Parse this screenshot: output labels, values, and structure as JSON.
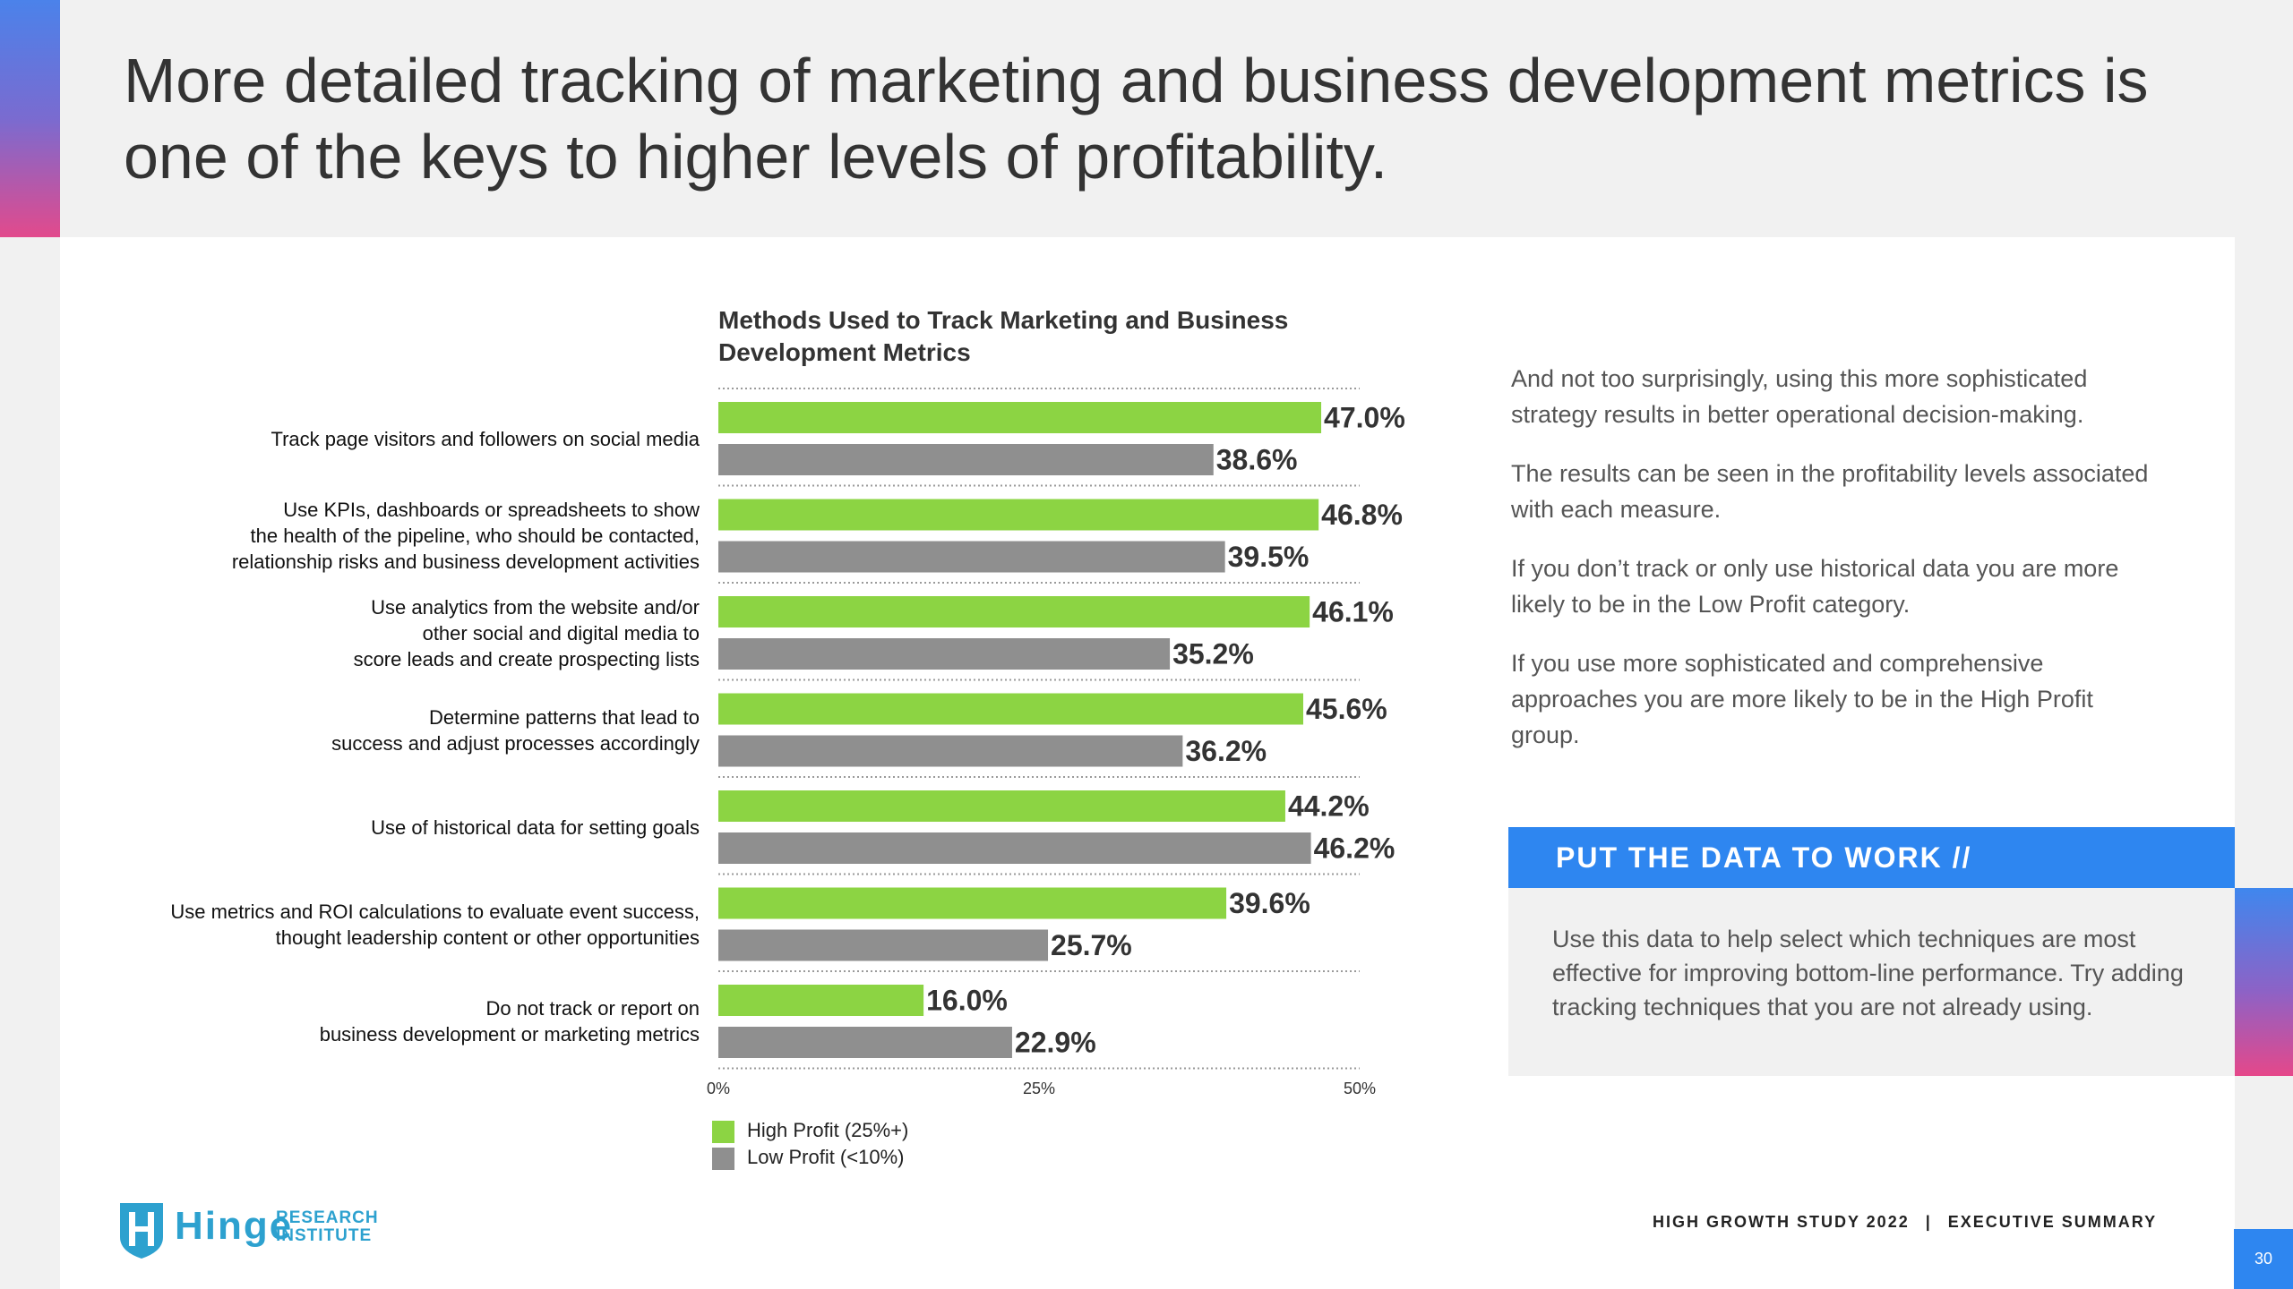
{
  "page": {
    "title": "More detailed tracking of marketing and business development metrics is one of the keys to higher levels of profitability.",
    "page_number": "30"
  },
  "colors": {
    "high_profit": "#8cd443",
    "low_profit": "#8f8f8f",
    "accent_blue": "#2e86f0",
    "accent_pink": "#e24a8c"
  },
  "chart_data": {
    "type": "bar",
    "orientation": "horizontal",
    "title": "Methods Used to Track Marketing and Business Development Metrics",
    "categories": [
      "Track page visitors and followers on social media",
      "Use KPIs, dashboards or spreadsheets to show the health of the pipeline, who should be contacted, relationship risks and business development activities",
      "Use analytics from the website and/or other social and digital media to score leads and create prospecting lists",
      "Determine patterns that lead to success and adjust processes accordingly",
      "Use of historical data for setting goals",
      "Use metrics and ROI calculations to evaluate event success, thought leadership content or other opportunities",
      "Do not track or report on business development or marketing metrics"
    ],
    "category_lines": [
      [
        "Track page visitors and followers on social media"
      ],
      [
        "Use KPIs, dashboards or spreadsheets to show",
        "the health of the pipeline, who should be contacted,",
        "relationship risks and business development activities"
      ],
      [
        "Use analytics from the website and/or",
        "other social and digital media to",
        "score leads and create prospecting lists"
      ],
      [
        "Determine patterns that lead to",
        "success and adjust processes accordingly"
      ],
      [
        "Use of historical data for setting goals"
      ],
      [
        "Use metrics and ROI calculations to evaluate event success,",
        "thought leadership content or other opportunities"
      ],
      [
        "Do not track or report on",
        "business development or marketing metrics"
      ]
    ],
    "series": [
      {
        "name": "High Profit (25%+)",
        "values": [
          47.0,
          46.8,
          46.1,
          45.6,
          44.2,
          39.6,
          16.0
        ]
      },
      {
        "name": "Low Profit (<10%)",
        "values": [
          38.6,
          39.5,
          35.2,
          36.2,
          46.2,
          25.7,
          22.9
        ]
      }
    ],
    "xlim": [
      0,
      50
    ],
    "xticks": [
      "0%",
      "25%",
      "50%"
    ],
    "xtick_values": [
      0,
      25,
      50
    ],
    "value_suffix": "%",
    "grid": false,
    "legend_position": "bottom-left"
  },
  "copy": {
    "paragraphs": [
      "And not too surprisingly, using this more sophisticated strategy results in better operational decision-making.",
      "The results can be seen in the profitability levels associated with each measure.",
      "If you don’t track or only use historical data you are more likely to be in the Low Profit category.",
      "If you use more sophisticated and comprehensive approaches you are more likely to be in the High Profit group."
    ]
  },
  "callout": {
    "header": "PUT THE DATA TO WORK  //",
    "body": "Use this data to help select which techniques are most effective for improving bottom-line performance. Try adding tracking techniques that you are not already using."
  },
  "logo": {
    "word": "Hinge",
    "sub_line1": "RESEARCH",
    "sub_line2": "INSTITUTE"
  },
  "footer": {
    "left": "HIGH GROWTH STUDY 2022",
    "separator": "|",
    "right": "EXECUTIVE SUMMARY"
  }
}
